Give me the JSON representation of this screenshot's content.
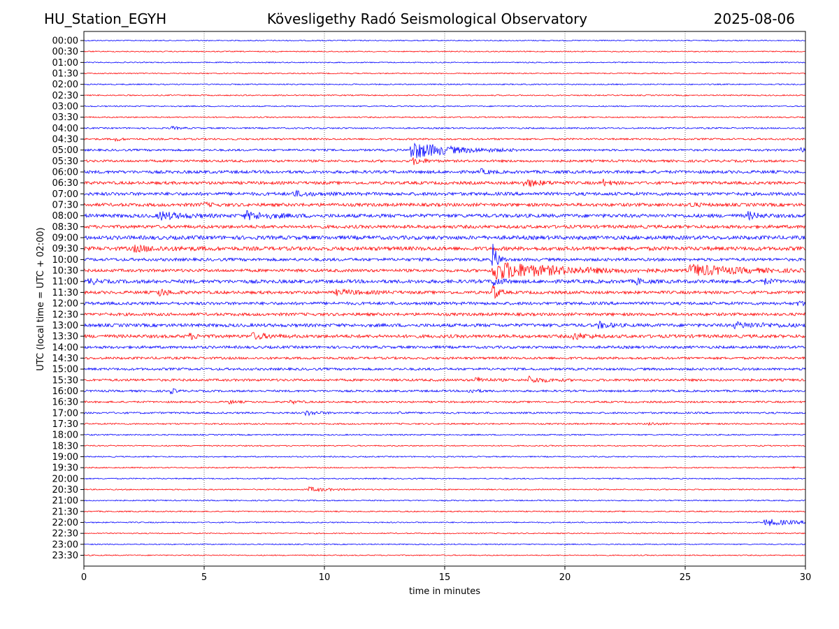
{
  "header": {
    "station": "HU_Station_EGYH",
    "title": "Kövesligethy Radó Seismological Observatory",
    "date": "2025-08-06"
  },
  "chart_data": {
    "type": "line",
    "title": "Kövesligethy Radó Seismological Observatory",
    "xlabel": "time in minutes",
    "ylabel": "UTC (local time = UTC + 02:00)",
    "xlim": [
      0,
      30
    ],
    "x_ticks": [
      0,
      5,
      10,
      15,
      20,
      25,
      30
    ],
    "x_tick_labels": [
      "0",
      "5",
      "10",
      "15",
      "20",
      "25",
      "30"
    ],
    "grid": "vertical dotted at x ticks",
    "trace_colors": [
      "#0000ff",
      "#ff0000"
    ],
    "rows": [
      {
        "label": "00:00",
        "noise": 0.18,
        "events": []
      },
      {
        "label": "00:30",
        "noise": 0.18,
        "events": []
      },
      {
        "label": "01:00",
        "noise": 0.18,
        "events": []
      },
      {
        "label": "01:30",
        "noise": 0.18,
        "events": []
      },
      {
        "label": "02:00",
        "noise": 0.2,
        "events": []
      },
      {
        "label": "02:30",
        "noise": 0.2,
        "events": []
      },
      {
        "label": "03:00",
        "noise": 0.2,
        "events": []
      },
      {
        "label": "03:30",
        "noise": 0.22,
        "events": []
      },
      {
        "label": "04:00",
        "noise": 0.25,
        "events": [
          {
            "t": 3.6,
            "amp": 0.6,
            "dur": 0.3
          }
        ]
      },
      {
        "label": "04:30",
        "noise": 0.3,
        "events": [
          {
            "t": 1.3,
            "amp": 0.7,
            "dur": 0.2
          }
        ]
      },
      {
        "label": "05:00",
        "noise": 0.35,
        "events": [
          {
            "t": 13.6,
            "amp": 3.0,
            "dur": 1.5
          },
          {
            "t": 29.8,
            "amp": 0.8,
            "dur": 0.3
          }
        ]
      },
      {
        "label": "05:30",
        "noise": 0.4,
        "events": [
          {
            "t": 13.7,
            "amp": 1.2,
            "dur": 0.4
          }
        ]
      },
      {
        "label": "06:00",
        "noise": 0.5,
        "events": [
          {
            "t": 16.5,
            "amp": 0.8,
            "dur": 0.3
          }
        ]
      },
      {
        "label": "06:30",
        "noise": 0.5,
        "events": [
          {
            "t": 18.3,
            "amp": 1.4,
            "dur": 0.6
          },
          {
            "t": 21.6,
            "amp": 1.0,
            "dur": 0.3
          }
        ]
      },
      {
        "label": "07:00",
        "noise": 0.55,
        "events": [
          {
            "t": 8.7,
            "amp": 0.8,
            "dur": 0.6
          }
        ]
      },
      {
        "label": "07:30",
        "noise": 0.55,
        "events": [
          {
            "t": 4.9,
            "amp": 0.7,
            "dur": 0.3
          },
          {
            "t": 25.2,
            "amp": 0.7,
            "dur": 0.3
          }
        ]
      },
      {
        "label": "08:00",
        "noise": 0.6,
        "events": [
          {
            "t": 3.1,
            "amp": 1.4,
            "dur": 0.8
          },
          {
            "t": 6.7,
            "amp": 1.3,
            "dur": 1.0
          },
          {
            "t": 27.6,
            "amp": 1.2,
            "dur": 0.4
          }
        ]
      },
      {
        "label": "08:30",
        "noise": 0.55,
        "events": []
      },
      {
        "label": "09:00",
        "noise": 0.65,
        "events": []
      },
      {
        "label": "09:30",
        "noise": 0.65,
        "events": [
          {
            "t": 2.0,
            "amp": 0.8,
            "dur": 1.2
          }
        ]
      },
      {
        "label": "10:00",
        "noise": 0.5,
        "events": [
          {
            "t": 17.0,
            "amp": 5.0,
            "dur": 0.2
          }
        ]
      },
      {
        "label": "10:30",
        "noise": 0.5,
        "events": [
          {
            "t": 17.0,
            "amp": 3.2,
            "dur": 2.5
          },
          {
            "t": 25.2,
            "amp": 2.0,
            "dur": 1.8
          }
        ]
      },
      {
        "label": "11:00",
        "noise": 0.6,
        "events": [
          {
            "t": 0.2,
            "amp": 1.0,
            "dur": 0.3
          },
          {
            "t": 17.0,
            "amp": 1.6,
            "dur": 0.3
          },
          {
            "t": 23.0,
            "amp": 0.9,
            "dur": 0.3
          },
          {
            "t": 28.3,
            "amp": 0.8,
            "dur": 0.3
          }
        ]
      },
      {
        "label": "11:30",
        "noise": 0.5,
        "events": [
          {
            "t": 3.1,
            "amp": 1.3,
            "dur": 0.4
          },
          {
            "t": 10.5,
            "amp": 0.8,
            "dur": 1.0
          },
          {
            "t": 17.0,
            "amp": 3.0,
            "dur": 0.2
          }
        ]
      },
      {
        "label": "12:00",
        "noise": 0.5,
        "events": [
          {
            "t": 29.7,
            "amp": 0.8,
            "dur": 0.3
          }
        ]
      },
      {
        "label": "12:30",
        "noise": 0.5,
        "events": []
      },
      {
        "label": "13:00",
        "noise": 0.55,
        "events": [
          {
            "t": 21.4,
            "amp": 1.1,
            "dur": 0.4
          },
          {
            "t": 27.0,
            "amp": 0.8,
            "dur": 1.5
          }
        ]
      },
      {
        "label": "13:30",
        "noise": 0.55,
        "events": [
          {
            "t": 4.4,
            "amp": 0.9,
            "dur": 0.3
          },
          {
            "t": 7.0,
            "amp": 1.0,
            "dur": 0.6
          },
          {
            "t": 20.3,
            "amp": 1.2,
            "dur": 0.5
          }
        ]
      },
      {
        "label": "14:00",
        "noise": 0.45,
        "events": []
      },
      {
        "label": "14:30",
        "noise": 0.4,
        "events": []
      },
      {
        "label": "15:00",
        "noise": 0.4,
        "events": []
      },
      {
        "label": "15:30",
        "noise": 0.4,
        "events": [
          {
            "t": 16.3,
            "amp": 0.9,
            "dur": 0.4
          },
          {
            "t": 18.5,
            "amp": 1.1,
            "dur": 0.6
          }
        ]
      },
      {
        "label": "16:00",
        "noise": 0.35,
        "events": [
          {
            "t": 3.6,
            "amp": 0.9,
            "dur": 0.2
          },
          {
            "t": 16.0,
            "amp": 0.8,
            "dur": 0.3
          }
        ]
      },
      {
        "label": "16:30",
        "noise": 0.3,
        "events": [
          {
            "t": 6.0,
            "amp": 0.6,
            "dur": 0.3
          },
          {
            "t": 8.6,
            "amp": 0.6,
            "dur": 0.3
          }
        ]
      },
      {
        "label": "17:00",
        "noise": 0.3,
        "events": [
          {
            "t": 9.2,
            "amp": 0.8,
            "dur": 0.5
          },
          {
            "t": 13.1,
            "amp": 0.6,
            "dur": 0.2
          }
        ]
      },
      {
        "label": "17:30",
        "noise": 0.25,
        "events": [
          {
            "t": 23.5,
            "amp": 0.5,
            "dur": 0.3
          }
        ]
      },
      {
        "label": "18:00",
        "noise": 0.22,
        "events": []
      },
      {
        "label": "18:30",
        "noise": 0.2,
        "events": []
      },
      {
        "label": "19:00",
        "noise": 0.2,
        "events": []
      },
      {
        "label": "19:30",
        "noise": 0.2,
        "events": [
          {
            "t": 29.5,
            "amp": 0.5,
            "dur": 0.1
          }
        ]
      },
      {
        "label": "20:00",
        "noise": 0.2,
        "events": []
      },
      {
        "label": "20:30",
        "noise": 0.2,
        "events": [
          {
            "t": 9.3,
            "amp": 0.8,
            "dur": 0.8
          }
        ]
      },
      {
        "label": "21:00",
        "noise": 0.2,
        "events": []
      },
      {
        "label": "21:30",
        "noise": 0.2,
        "events": []
      },
      {
        "label": "22:00",
        "noise": 0.2,
        "events": [
          {
            "t": 28.3,
            "amp": 1.2,
            "dur": 1.2
          }
        ]
      },
      {
        "label": "22:30",
        "noise": 0.18,
        "events": []
      },
      {
        "label": "23:00",
        "noise": 0.18,
        "events": []
      },
      {
        "label": "23:30",
        "noise": 0.18,
        "events": []
      }
    ]
  }
}
